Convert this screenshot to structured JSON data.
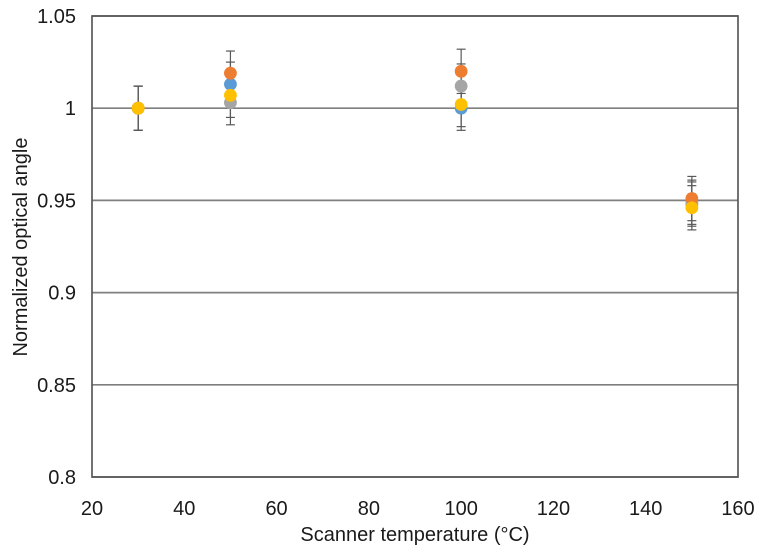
{
  "chart_data": {
    "type": "scatter",
    "title": "",
    "xlabel": "Scanner temperature (°C)",
    "ylabel": "Normalized optical angle",
    "xlim": [
      20,
      160
    ],
    "ylim": [
      0.8,
      1.05
    ],
    "x_ticks": [
      20,
      40,
      60,
      80,
      100,
      120,
      140,
      160
    ],
    "x_tick_labels": [
      "20",
      "40",
      "60",
      "80",
      "100",
      "120",
      "140",
      "160"
    ],
    "y_ticks": [
      0.8,
      0.85,
      0.9,
      0.95,
      1.0,
      1.05
    ],
    "y_tick_labels": [
      "0.8",
      "0.85",
      "0.9",
      "0.95",
      "1",
      "1.05"
    ],
    "grid": "horizontal-only",
    "legend": "none",
    "error_bar_y": 0.012,
    "series": [
      {
        "name": "series-blue",
        "color": "#5B9BD5",
        "x": [
          30,
          50,
          100,
          150
        ],
        "y": [
          1.0,
          1.013,
          1.0,
          0.948
        ]
      },
      {
        "name": "series-gray",
        "color": "#A5A5A5",
        "x": [
          30,
          50,
          100,
          150
        ],
        "y": [
          1.0,
          1.003,
          1.012,
          0.949
        ]
      },
      {
        "name": "series-orange",
        "color": "#ED7D31",
        "x": [
          30,
          50,
          100,
          150
        ],
        "y": [
          1.0,
          1.019,
          1.02,
          0.951
        ]
      },
      {
        "name": "series-yellow",
        "color": "#FFC000",
        "x": [
          30,
          50,
          100,
          150
        ],
        "y": [
          1.0,
          1.007,
          1.002,
          0.946
        ]
      }
    ],
    "colors": {
      "background": "#ffffff",
      "gridline": "#7F7F7F",
      "plot_border": "#595959",
      "error_bar": "#595959",
      "text": "#1a1a1a"
    }
  }
}
